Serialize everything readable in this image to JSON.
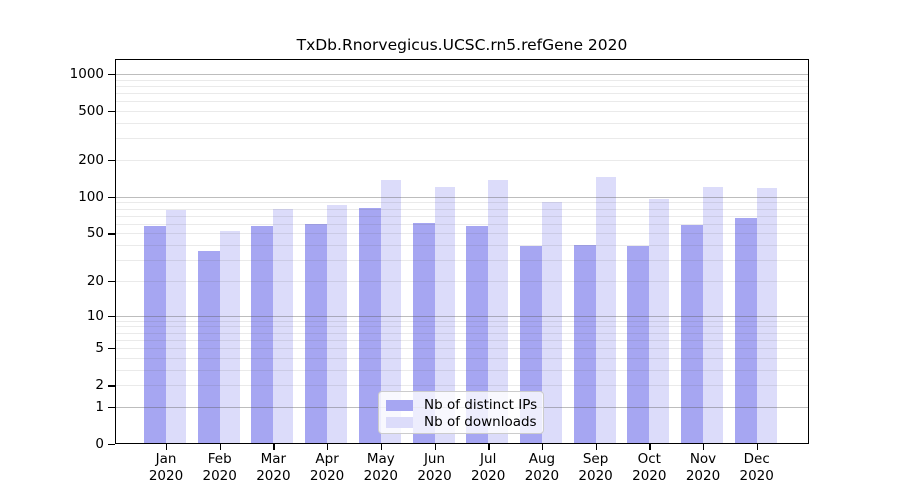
{
  "title": "TxDb.Rnorvegicus.UCSC.rn5.refGene 2020",
  "legend": {
    "items": [
      {
        "label": "Nb of distinct IPs",
        "color": "#a6a6f2"
      },
      {
        "label": "Nb of downloads",
        "color": "#dcdcfa"
      }
    ]
  },
  "chart_data": {
    "type": "bar",
    "title": "TxDb.Rnorvegicus.UCSC.rn5.refGene 2020",
    "categories": [
      "Jan",
      "Feb",
      "Mar",
      "Apr",
      "May",
      "Jun",
      "Jul",
      "Aug",
      "Sep",
      "Oct",
      "Nov",
      "Dec"
    ],
    "category_year": "2020",
    "series": [
      {
        "name": "Nb of distinct IPs",
        "color": "#a6a6f2",
        "values": [
          58,
          36,
          57,
          60,
          81,
          61,
          58,
          39,
          40,
          39,
          59,
          67
        ]
      },
      {
        "name": "Nb of downloads",
        "color": "#dcdcfa",
        "values": [
          78,
          52,
          80,
          86,
          137,
          121,
          136,
          90,
          144,
          95,
          121,
          117
        ]
      }
    ],
    "y_scale": "log1p",
    "y_ticks": [
      0,
      1,
      2,
      5,
      10,
      20,
      50,
      100,
      200,
      500,
      1000
    ],
    "y_tick_labels": [
      "0",
      "1",
      "2",
      "5",
      "10",
      "20",
      "50",
      "100",
      "200",
      "500",
      "1000"
    ],
    "y_major_gridlines": [
      1,
      10,
      100,
      1000
    ],
    "ylim": [
      0,
      1320
    ],
    "grid": true,
    "legend_position": "inside-bottom-center",
    "colors": {
      "background": "#ffffff",
      "axis": "#000000",
      "major_grid": "#bdbdbd",
      "minor_grid": "#e9e9e9"
    }
  }
}
